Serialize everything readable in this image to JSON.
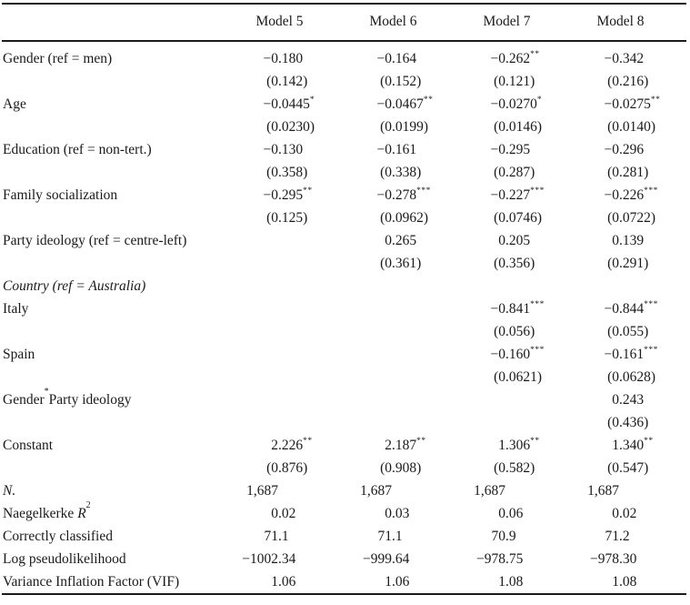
{
  "colors": {
    "background": "#ffffff",
    "text": "#1a1a1a",
    "rule": "#1c1c1c"
  },
  "table": {
    "columns": [
      "Model 5",
      "Model 6",
      "Model 7",
      "Model 8"
    ],
    "rows": [
      {
        "label": "Gender (ref = men)",
        "cells": [
          "−0.180",
          "−0.164",
          "−0.262**",
          "−0.342"
        ]
      },
      {
        "label": "",
        "cells": [
          "(0.142)",
          "(0.152)",
          "(0.121)",
          "(0.216)"
        ]
      },
      {
        "label": "Age",
        "cells": [
          "−0.0445*",
          "−0.0467**",
          "−0.0270*",
          "−0.0275**"
        ]
      },
      {
        "label": "",
        "cells": [
          "(0.0230)",
          "(0.0199)",
          "(0.0146)",
          "(0.0140)"
        ]
      },
      {
        "label": "Education (ref = non-tert.)",
        "cells": [
          "−0.130",
          "−0.161",
          "−0.295",
          "−0.296"
        ]
      },
      {
        "label": "",
        "cells": [
          "(0.358)",
          "(0.338)",
          "(0.287)",
          "(0.281)"
        ]
      },
      {
        "label": "Family socialization",
        "cells": [
          "−0.295**",
          "−0.278***",
          "−0.227***",
          "−0.226***"
        ]
      },
      {
        "label": "",
        "cells": [
          "(0.125)",
          "(0.0962)",
          "(0.0746)",
          "(0.0722)"
        ]
      },
      {
        "label": "Party ideology (ref = centre-left)",
        "cells": [
          "",
          "0.265",
          "0.205",
          "0.139"
        ]
      },
      {
        "label": "",
        "cells": [
          "",
          "(0.361)",
          "(0.356)",
          "(0.291)"
        ]
      },
      {
        "label": "Country (ref = Australia)",
        "italic": true,
        "cells": [
          "",
          "",
          "",
          ""
        ]
      },
      {
        "label": "Italy",
        "cells": [
          "",
          "",
          "−0.841***",
          "−0.844***"
        ]
      },
      {
        "label": "",
        "cells": [
          "",
          "",
          "(0.056)",
          "(0.055)"
        ]
      },
      {
        "label": "Spain",
        "cells": [
          "",
          "",
          "−0.160***",
          "−0.161***"
        ]
      },
      {
        "label": "",
        "cells": [
          "",
          "",
          "(0.0621)",
          "(0.0628)"
        ]
      },
      {
        "label": "Gender",
        "label_sup": "*",
        "label_post": "Party ideology",
        "cells": [
          "",
          "",
          "",
          "0.243"
        ]
      },
      {
        "label": "",
        "cells": [
          "",
          "",
          "",
          "(0.436)"
        ]
      },
      {
        "label": "Constant",
        "cells": [
          "2.226**",
          "2.187**",
          "1.306**",
          "1.340**"
        ]
      },
      {
        "label": "",
        "cells": [
          "(0.876)",
          "(0.908)",
          "(0.582)",
          "(0.547)"
        ]
      },
      {
        "label": "N.",
        "italic": true,
        "cells": [
          "1,687",
          "1,687",
          "1,687",
          "1,687"
        ]
      },
      {
        "label": "Naegelkerke ",
        "label_i": "R",
        "label_sup": "2",
        "cells": [
          "0.02",
          "0.03",
          "0.06",
          "0.02"
        ]
      },
      {
        "label": "Correctly classified",
        "cells": [
          "71.1",
          "71.1",
          "70.9",
          "71.2"
        ]
      },
      {
        "label": "Log pseudolikelihood",
        "cells": [
          "−1002.34",
          "−999.64",
          "−978.75",
          "−978.30"
        ]
      },
      {
        "label": "Variance Inflation Factor (VIF)",
        "cells": [
          "1.06",
          "1.06",
          "1.08",
          "1.08"
        ]
      }
    ]
  }
}
